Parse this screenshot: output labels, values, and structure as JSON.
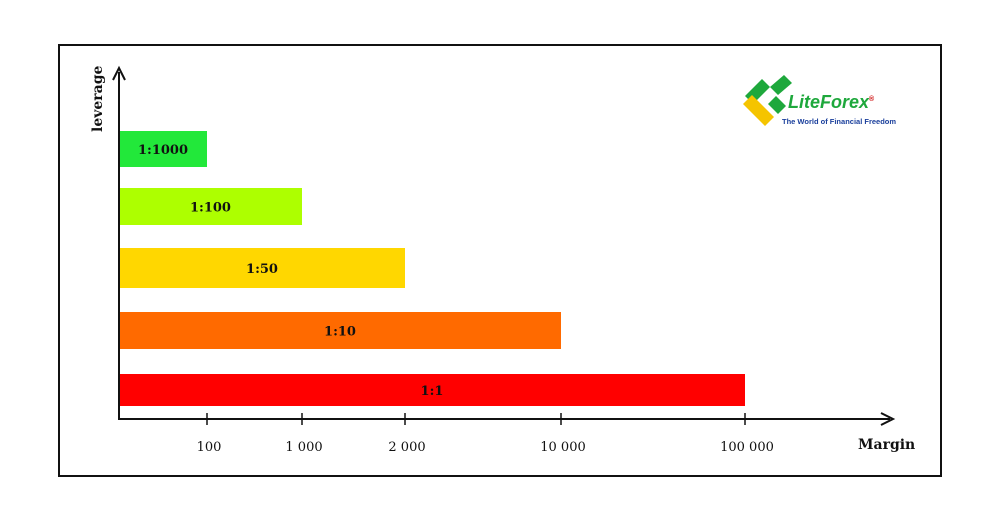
{
  "brand": {
    "name_part1": "Lite",
    "name_part2": "Forex",
    "registered": "®",
    "tagline": "The World of Financial Freedom",
    "color_green": "#1ea83c",
    "color_yellow": "#f5c400",
    "color_blue": "#1a3f9c"
  },
  "chart_data": {
    "type": "bar",
    "orientation": "horizontal",
    "title": "",
    "xlabel": "Margin",
    "ylabel": "leverage",
    "x_scale": "categorical-tick",
    "x_ticks": [
      "100",
      "1 000",
      "2 000",
      "10 000",
      "100 000"
    ],
    "grid": false,
    "legend": "none",
    "categories": [
      "1:1000",
      "1:100",
      "1:50",
      "1:10",
      "1:1"
    ],
    "values": [
      100,
      1000,
      2000,
      10000,
      100000
    ],
    "colors": [
      "#22e83a",
      "#adff00",
      "#ffd700",
      "#ff6a00",
      "#ff0000"
    ]
  }
}
